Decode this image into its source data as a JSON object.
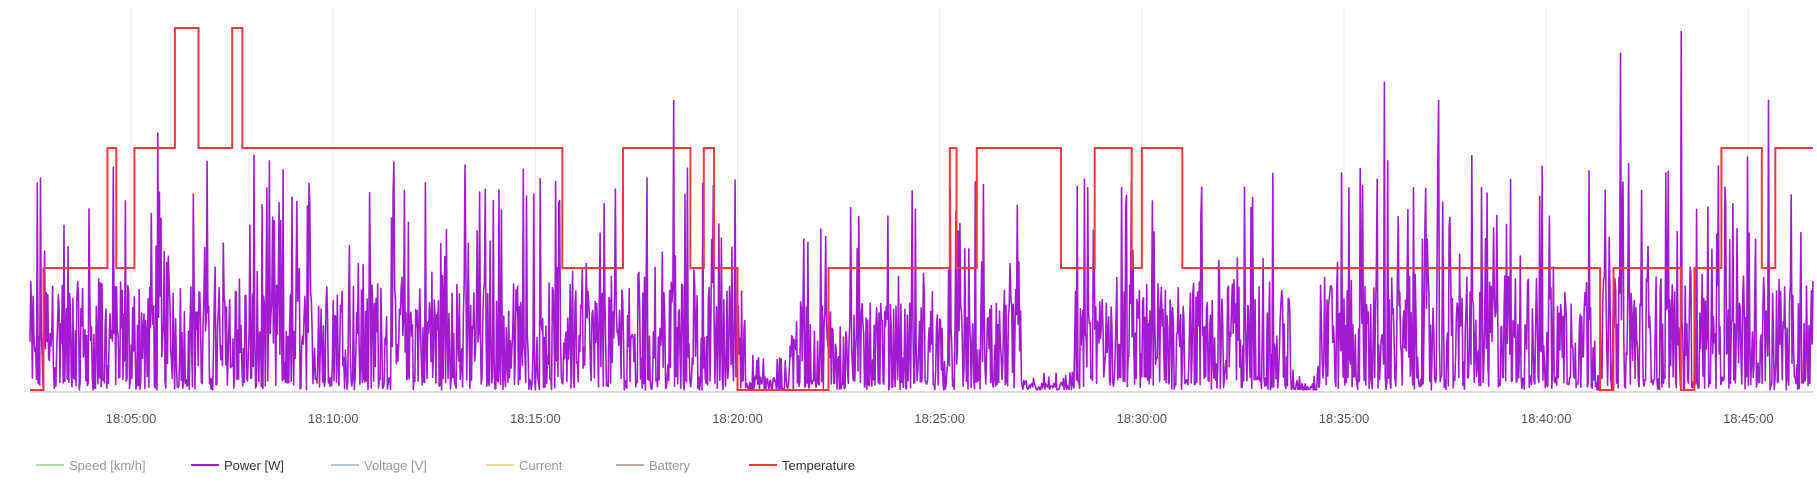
{
  "chart_data": {
    "type": "line",
    "x_axis": {
      "type": "time",
      "min": "18:02:30",
      "max": "18:46:36",
      "tick_labels": [
        "18:05:00",
        "18:10:00",
        "18:15:00",
        "18:20:00",
        "18:25:00",
        "18:30:00",
        "18:35:00",
        "18:40:00",
        "18:45:00"
      ]
    },
    "grid": {
      "vertical": true,
      "horizontal": false
    },
    "legend": {
      "placement": "bottom-left",
      "items": [
        {
          "name": "Speed [km/h]",
          "color": "#7ccf7c",
          "hidden": true
        },
        {
          "name": "Power [W]",
          "color": "#a21bd0",
          "hidden": false
        },
        {
          "name": "Voltage [V]",
          "color": "#7fa8e0",
          "hidden": true
        },
        {
          "name": "Current",
          "color": "#f1c76a",
          "hidden": true
        },
        {
          "name": "Battery",
          "color": "#9b7f6a",
          "hidden": true
        },
        {
          "name": "Temperature",
          "color": "#f23a3a",
          "hidden": false
        }
      ]
    },
    "series": [
      {
        "name": "Power [W]",
        "color": "#a21bd0",
        "style": "noisy",
        "min": 0,
        "max": 1000,
        "segments": [
          {
            "start": "18:02:30",
            "end": "18:20:15",
            "base": 15,
            "peak": 65
          },
          {
            "start": "18:20:15",
            "end": "18:21:15",
            "base": 2,
            "peak": 10
          },
          {
            "start": "18:21:15",
            "end": "18:27:00",
            "base": 12,
            "peak": 58
          },
          {
            "start": "18:27:00",
            "end": "18:28:20",
            "base": 1,
            "peak": 5
          },
          {
            "start": "18:28:20",
            "end": "18:33:40",
            "base": 15,
            "peak": 60
          },
          {
            "start": "18:33:40",
            "end": "18:34:20",
            "base": 1,
            "peak": 6
          },
          {
            "start": "18:34:20",
            "end": "18:46:36",
            "base": 16,
            "peak": 65
          }
        ],
        "spikes": [
          {
            "x": "18:05:40",
            "y": 71
          },
          {
            "x": "18:18:25",
            "y": 80
          },
          {
            "x": "18:36:00",
            "y": 85
          },
          {
            "x": "18:37:20",
            "y": 80
          },
          {
            "x": "18:41:50",
            "y": 93
          },
          {
            "x": "18:43:20",
            "y": 99
          },
          {
            "x": "18:45:30",
            "y": 80
          }
        ]
      },
      {
        "name": "Temperature",
        "color": "#f23a3a",
        "style": "step",
        "levels": [
          0,
          1,
          2,
          3
        ],
        "points": [
          {
            "x": "18:02:30",
            "y": 0
          },
          {
            "x": "18:02:50",
            "y": 1
          },
          {
            "x": "18:04:25",
            "y": 2
          },
          {
            "x": "18:04:38",
            "y": 1
          },
          {
            "x": "18:05:05",
            "y": 2
          },
          {
            "x": "18:06:05",
            "y": 3
          },
          {
            "x": "18:06:40",
            "y": 2
          },
          {
            "x": "18:07:30",
            "y": 3
          },
          {
            "x": "18:07:45",
            "y": 2
          },
          {
            "x": "18:15:40",
            "y": 1
          },
          {
            "x": "18:17:10",
            "y": 2
          },
          {
            "x": "18:18:50",
            "y": 1
          },
          {
            "x": "18:19:10",
            "y": 2
          },
          {
            "x": "18:19:25",
            "y": 1
          },
          {
            "x": "18:20:00",
            "y": 0
          },
          {
            "x": "18:22:15",
            "y": 1
          },
          {
            "x": "18:25:15",
            "y": 2
          },
          {
            "x": "18:25:25",
            "y": 1
          },
          {
            "x": "18:25:55",
            "y": 2
          },
          {
            "x": "18:28:00",
            "y": 1
          },
          {
            "x": "18:28:50",
            "y": 2
          },
          {
            "x": "18:29:45",
            "y": 1
          },
          {
            "x": "18:30:00",
            "y": 2
          },
          {
            "x": "18:31:00",
            "y": 1
          },
          {
            "x": "18:41:20",
            "y": 0
          },
          {
            "x": "18:41:40",
            "y": 1
          },
          {
            "x": "18:43:20",
            "y": 0
          },
          {
            "x": "18:43:40",
            "y": 1
          },
          {
            "x": "18:44:20",
            "y": 2
          },
          {
            "x": "18:45:20",
            "y": 1
          },
          {
            "x": "18:45:40",
            "y": 2
          }
        ]
      }
    ]
  }
}
